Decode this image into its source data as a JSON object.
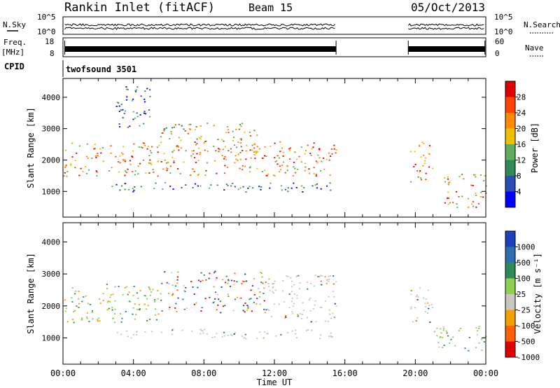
{
  "header": {
    "station": "Rankin Inlet (fitACF)",
    "beam": "Beam 15",
    "date": "05/Oct/2013"
  },
  "aux": {
    "nsky_label": "N.Sky",
    "nsky_ticks": [
      "10^5",
      "10^0"
    ],
    "nsearch_label": "N.Search",
    "freq_label_1": "Freq.",
    "freq_label_2": "[MHz]",
    "freq_ticks": [
      "18",
      "8"
    ],
    "nave_label": "Nave",
    "nave_ticks": [
      "60",
      "0"
    ],
    "cpid_label": "CPID",
    "cpid_value": "twofsound 3501"
  },
  "chart_data": [
    {
      "type": "heatmap",
      "panel": "power",
      "xlabel": "Time UT",
      "ylabel": "Slant Range [km]",
      "x_ticks": [
        "00:00",
        "04:00",
        "08:00",
        "12:00",
        "16:00",
        "20:00",
        "00:00"
      ],
      "xlim_hours": [
        0,
        24
      ],
      "y_ticks": [
        1000,
        2000,
        3000,
        4000
      ],
      "ylim": [
        180,
        4600
      ],
      "colorbar_label": "Power [dB]",
      "colorbar_ticks": [
        "28",
        "24",
        "20",
        "16",
        "12",
        "8",
        "4"
      ],
      "colors": [
        "#0000ff",
        "#2a4db8",
        "#2e8b57",
        "#5fae5f",
        "#f0c000",
        "#ff8c00",
        "#ff4500",
        "#e00000"
      ],
      "data_gaps_hours": [
        [
          15.6,
          19.6
        ]
      ],
      "echo_regions": [
        {
          "t": [
            0,
            15.5
          ],
          "range": [
            1500,
            2600
          ],
          "level": "high"
        },
        {
          "t": [
            2.5,
            15.5
          ],
          "range": [
            1000,
            1300
          ],
          "level": "low"
        },
        {
          "t": [
            3,
            5
          ],
          "range": [
            3000,
            4400
          ],
          "level": "low"
        },
        {
          "t": [
            5.5,
            11
          ],
          "range": [
            2300,
            3200
          ],
          "level": "medium"
        },
        {
          "t": [
            19.7,
            21
          ],
          "range": [
            1300,
            2600
          ],
          "level": "high"
        },
        {
          "t": [
            21.5,
            24
          ],
          "range": [
            500,
            1600
          ],
          "level": "high"
        }
      ]
    },
    {
      "type": "heatmap",
      "panel": "velocity",
      "xlabel": "Time UT",
      "ylabel": "Slant Range [km]",
      "x_ticks": [
        "00:00",
        "04:00",
        "08:00",
        "12:00",
        "16:00",
        "20:00",
        "00:00"
      ],
      "xlim_hours": [
        0,
        24
      ],
      "y_ticks": [
        1000,
        2000,
        3000,
        4000
      ],
      "ylim": [
        180,
        4600
      ],
      "colorbar_label": "Velocity [m s⁻¹]",
      "colorbar_ticks": [
        "1000",
        "500",
        "100",
        "25",
        "-25",
        "-100",
        "-500",
        "-1000"
      ],
      "colors": [
        "#1e3fc0",
        "#2e6fb0",
        "#2e8b57",
        "#8fd050",
        "#c8c8c0",
        "#f5a000",
        "#ff6000",
        "#e00000"
      ],
      "data_gaps_hours": [
        [
          15.6,
          19.6
        ]
      ],
      "echo_regions": [
        {
          "t": [
            0,
            5.5
          ],
          "range": [
            1500,
            2700
          ],
          "level": "green-orange"
        },
        {
          "t": [
            5.5,
            11.5
          ],
          "range": [
            1800,
            3100
          ],
          "level": "mixed"
        },
        {
          "t": [
            11.5,
            15.5
          ],
          "range": [
            1500,
            3000
          ],
          "level": "grey"
        },
        {
          "t": [
            3,
            15.5
          ],
          "range": [
            1000,
            1300
          ],
          "level": "grey"
        },
        {
          "t": [
            19.7,
            21
          ],
          "range": [
            1400,
            2600
          ],
          "level": "grey"
        },
        {
          "t": [
            21,
            24
          ],
          "range": [
            600,
            1400
          ],
          "level": "green"
        }
      ]
    }
  ]
}
